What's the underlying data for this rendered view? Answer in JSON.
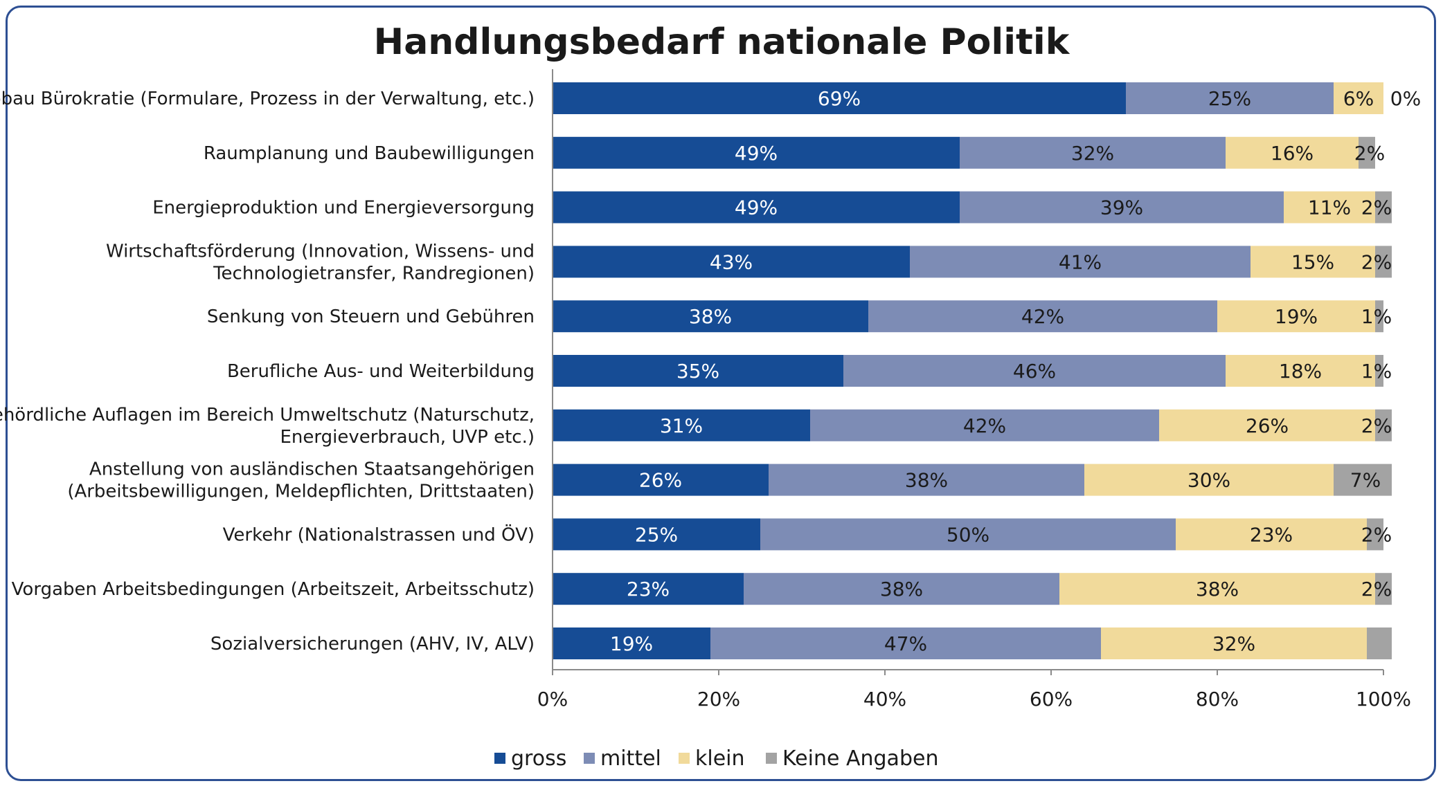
{
  "chart_data": {
    "type": "bar",
    "orientation": "horizontal",
    "stacked": true,
    "title": "Handlungsbedarf nationale Politik",
    "categories": [
      [
        "Abbau Bürokratie (Formulare, Prozess in der Verwaltung, etc.)"
      ],
      [
        "Raumplanung und Baubewilligungen"
      ],
      [
        "Energieproduktion und Energieversorgung"
      ],
      [
        "Wirtschaftsförderung (Innovation, Wissens- und",
        "Technologietransfer, Randregionen)"
      ],
      [
        "Senkung von Steuern und Gebühren"
      ],
      [
        "Berufliche Aus- und Weiterbildung"
      ],
      [
        "Behördliche Auflagen im Bereich Umweltschutz (Naturschutz,",
        "Energieverbrauch, UVP etc.)"
      ],
      [
        "Anstellung von ausländischen Staatsangehörigen",
        "(Arbeitsbewilligungen, Meldepflichten, Drittstaaten)"
      ],
      [
        "Verkehr (Nationalstrassen und ÖV)"
      ],
      [
        "Vorgaben Arbeitsbedingungen (Arbeitszeit, Arbeitsschutz)"
      ],
      [
        "Sozialversicherungen (AHV, IV, ALV)"
      ]
    ],
    "series": [
      {
        "name": "gross",
        "color": "#164c95",
        "label_color": "#ffffff",
        "values": [
          69,
          49,
          49,
          43,
          38,
          35,
          31,
          26,
          25,
          23,
          19
        ],
        "labels": [
          "69%",
          "49%",
          "49%",
          "43%",
          "38%",
          "35%",
          "31%",
          "26%",
          "25%",
          "23%",
          "19%"
        ]
      },
      {
        "name": "mittel",
        "color": "#7d8cb5",
        "label_color": "#1a1a1a",
        "values": [
          25,
          32,
          39,
          41,
          42,
          46,
          42,
          38,
          50,
          38,
          47
        ],
        "labels": [
          "25%",
          "32%",
          "39%",
          "41%",
          "42%",
          "46%",
          "42%",
          "38%",
          "50%",
          "38%",
          "47%"
        ]
      },
      {
        "name": "klein",
        "color": "#f1da9b",
        "label_color": "#1a1a1a",
        "values": [
          6,
          16,
          11,
          15,
          19,
          18,
          26,
          30,
          23,
          38,
          32
        ],
        "labels": [
          "6%",
          "16%",
          "11%",
          "15%",
          "19%",
          "18%",
          "26%",
          "30%",
          "23%",
          "38%",
          "32%"
        ]
      },
      {
        "name": "Keine Angaben",
        "color": "#a3a3a3",
        "label_color": "#1a1a1a",
        "values": [
          0,
          2,
          2,
          2,
          1,
          1,
          2,
          7,
          2,
          2,
          3
        ],
        "labels": [
          "0%",
          "2%",
          "2%",
          "2%",
          "1%",
          "1%",
          "2%",
          "7%",
          "2%",
          "2%",
          ""
        ]
      }
    ],
    "xlim": [
      0,
      100
    ],
    "xticks": [
      "0%",
      "20%",
      "40%",
      "60%",
      "80%",
      "100%"
    ],
    "grid": false,
    "legend_position": "bottom"
  }
}
